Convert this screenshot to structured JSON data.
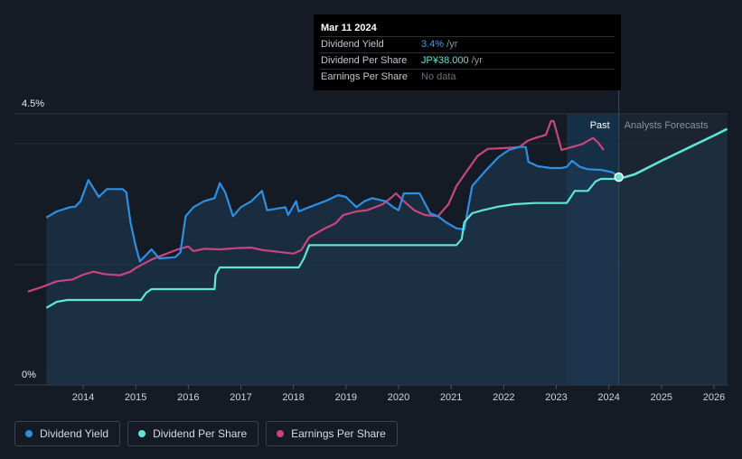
{
  "chart_data": {
    "type": "line",
    "title": "",
    "x_ticks": [
      "2014",
      "2015",
      "2016",
      "2017",
      "2018",
      "2019",
      "2020",
      "2021",
      "2022",
      "2023",
      "2024",
      "2025",
      "2026"
    ],
    "x_range": [
      2013.0,
      2026.25
    ],
    "y_range_pct": [
      0,
      4.5
    ],
    "y_labels": [
      "4.5%",
      "0%"
    ],
    "regions": {
      "past_label": "Past",
      "forecast_label": "Analysts Forecasts",
      "divider_x": 2024.19
    },
    "tooltip": {
      "date": "Mar 11 2024",
      "rows": [
        {
          "name": "Dividend Yield",
          "value": "3.4%",
          "suffix": " /yr",
          "color": "blue"
        },
        {
          "name": "Dividend Per Share",
          "value": "JP¥38.000",
          "suffix": " /yr",
          "color": "teal"
        },
        {
          "name": "Earnings Per Share",
          "value": "No data",
          "suffix": "",
          "color": "grey"
        }
      ]
    },
    "series": [
      {
        "name": "Dividend Yield",
        "unit": "%",
        "color": "#2e8fe0",
        "points": [
          [
            2013.3,
            2.78
          ],
          [
            2013.5,
            2.88
          ],
          [
            2013.75,
            2.95
          ],
          [
            2013.85,
            2.96
          ],
          [
            2013.95,
            3.05
          ],
          [
            2014.1,
            3.4
          ],
          [
            2014.3,
            3.12
          ],
          [
            2014.45,
            3.25
          ],
          [
            2014.75,
            3.25
          ],
          [
            2014.82,
            3.2
          ],
          [
            2014.9,
            2.7
          ],
          [
            2015.0,
            2.3
          ],
          [
            2015.08,
            2.05
          ],
          [
            2015.3,
            2.25
          ],
          [
            2015.45,
            2.1
          ],
          [
            2015.75,
            2.12
          ],
          [
            2015.85,
            2.2
          ],
          [
            2015.95,
            2.8
          ],
          [
            2016.1,
            2.95
          ],
          [
            2016.3,
            3.05
          ],
          [
            2016.5,
            3.1
          ],
          [
            2016.6,
            3.35
          ],
          [
            2016.7,
            3.2
          ],
          [
            2016.85,
            2.8
          ],
          [
            2017.0,
            2.95
          ],
          [
            2017.2,
            3.05
          ],
          [
            2017.4,
            3.22
          ],
          [
            2017.5,
            2.9
          ],
          [
            2017.85,
            2.95
          ],
          [
            2017.9,
            2.82
          ],
          [
            2018.05,
            3.05
          ],
          [
            2018.1,
            2.88
          ],
          [
            2018.3,
            2.95
          ],
          [
            2018.6,
            3.05
          ],
          [
            2018.85,
            3.15
          ],
          [
            2019.0,
            3.12
          ],
          [
            2019.2,
            2.95
          ],
          [
            2019.35,
            3.05
          ],
          [
            2019.5,
            3.1
          ],
          [
            2019.75,
            3.05
          ],
          [
            2019.9,
            2.95
          ],
          [
            2020.0,
            2.9
          ],
          [
            2020.1,
            3.18
          ],
          [
            2020.4,
            3.18
          ],
          [
            2020.6,
            2.85
          ],
          [
            2020.75,
            2.8
          ],
          [
            2020.9,
            2.7
          ],
          [
            2021.1,
            2.6
          ],
          [
            2021.25,
            2.58
          ],
          [
            2021.4,
            3.3
          ],
          [
            2021.65,
            3.55
          ],
          [
            2021.9,
            3.78
          ],
          [
            2022.1,
            3.9
          ],
          [
            2022.3,
            3.95
          ],
          [
            2022.42,
            3.95
          ],
          [
            2022.47,
            3.7
          ],
          [
            2022.65,
            3.63
          ],
          [
            2022.9,
            3.6
          ],
          [
            2023.1,
            3.6
          ],
          [
            2023.2,
            3.62
          ],
          [
            2023.3,
            3.72
          ],
          [
            2023.45,
            3.62
          ],
          [
            2023.6,
            3.58
          ],
          [
            2023.85,
            3.57
          ],
          [
            2024.07,
            3.53
          ],
          [
            2024.19,
            3.45
          ]
        ]
      },
      {
        "name": "Dividend Per Share",
        "unit": "JPY",
        "color": "#5fe6d6",
        "points": [
          [
            2013.3,
            1.28
          ],
          [
            2013.5,
            1.38
          ],
          [
            2013.7,
            1.41
          ],
          [
            2014.0,
            1.41
          ],
          [
            2014.5,
            1.41
          ],
          [
            2015.1,
            1.41
          ],
          [
            2015.2,
            1.53
          ],
          [
            2015.3,
            1.59
          ],
          [
            2016.0,
            1.59
          ],
          [
            2016.5,
            1.59
          ],
          [
            2016.52,
            1.83
          ],
          [
            2016.6,
            1.95
          ],
          [
            2017.0,
            1.95
          ],
          [
            2017.5,
            1.95
          ],
          [
            2018.0,
            1.95
          ],
          [
            2018.1,
            1.95
          ],
          [
            2018.2,
            2.1
          ],
          [
            2018.3,
            2.32
          ],
          [
            2019.0,
            2.32
          ],
          [
            2020.0,
            2.32
          ],
          [
            2020.5,
            2.32
          ],
          [
            2021.1,
            2.32
          ],
          [
            2021.2,
            2.42
          ],
          [
            2021.25,
            2.7
          ],
          [
            2021.4,
            2.85
          ],
          [
            2021.6,
            2.9
          ],
          [
            2021.9,
            2.96
          ],
          [
            2022.2,
            3.0
          ],
          [
            2022.6,
            3.02
          ],
          [
            2023.2,
            3.02
          ],
          [
            2023.3,
            3.15
          ],
          [
            2023.35,
            3.22
          ],
          [
            2023.6,
            3.22
          ],
          [
            2023.75,
            3.38
          ],
          [
            2023.85,
            3.42
          ],
          [
            2024.19,
            3.42
          ]
        ]
      },
      {
        "name": "Dividend Per Share Forecast",
        "unit": "JPY",
        "color": "#5fe6d6",
        "points": [
          [
            2024.19,
            3.42
          ],
          [
            2024.5,
            3.5
          ],
          [
            2025.0,
            3.72
          ],
          [
            2025.5,
            3.93
          ],
          [
            2026.0,
            4.14
          ],
          [
            2026.25,
            4.25
          ]
        ]
      },
      {
        "name": "Earnings Per Share",
        "unit": "JPY",
        "color": "#c9457f",
        "points": [
          [
            2012.95,
            1.55
          ],
          [
            2013.2,
            1.62
          ],
          [
            2013.5,
            1.72
          ],
          [
            2013.8,
            1.75
          ],
          [
            2014.0,
            1.83
          ],
          [
            2014.2,
            1.88
          ],
          [
            2014.4,
            1.84
          ],
          [
            2014.7,
            1.82
          ],
          [
            2014.9,
            1.88
          ],
          [
            2015.0,
            1.94
          ],
          [
            2015.3,
            2.08
          ],
          [
            2015.5,
            2.15
          ],
          [
            2015.8,
            2.25
          ],
          [
            2016.0,
            2.3
          ],
          [
            2016.1,
            2.22
          ],
          [
            2016.3,
            2.26
          ],
          [
            2016.6,
            2.25
          ],
          [
            2016.9,
            2.27
          ],
          [
            2017.2,
            2.28
          ],
          [
            2017.4,
            2.24
          ],
          [
            2017.6,
            2.22
          ],
          [
            2017.8,
            2.2
          ],
          [
            2018.0,
            2.18
          ],
          [
            2018.15,
            2.24
          ],
          [
            2018.3,
            2.45
          ],
          [
            2018.6,
            2.6
          ],
          [
            2018.8,
            2.68
          ],
          [
            2018.95,
            2.82
          ],
          [
            2019.2,
            2.88
          ],
          [
            2019.4,
            2.9
          ],
          [
            2019.7,
            3.0
          ],
          [
            2019.85,
            3.1
          ],
          [
            2019.95,
            3.18
          ],
          [
            2020.1,
            3.05
          ],
          [
            2020.3,
            2.9
          ],
          [
            2020.5,
            2.82
          ],
          [
            2020.75,
            2.8
          ],
          [
            2020.95,
            3.0
          ],
          [
            2021.1,
            3.3
          ],
          [
            2021.3,
            3.55
          ],
          [
            2021.5,
            3.8
          ],
          [
            2021.7,
            3.92
          ],
          [
            2022.0,
            3.93
          ],
          [
            2022.3,
            3.95
          ],
          [
            2022.45,
            4.05
          ],
          [
            2022.6,
            4.1
          ],
          [
            2022.8,
            4.15
          ],
          [
            2022.9,
            4.38
          ],
          [
            2022.95,
            4.38
          ],
          [
            2023.1,
            3.9
          ],
          [
            2023.3,
            3.95
          ],
          [
            2023.5,
            4.0
          ],
          [
            2023.7,
            4.1
          ],
          [
            2023.8,
            4.02
          ],
          [
            2023.9,
            3.9
          ]
        ]
      }
    ]
  },
  "legend": [
    {
      "label": "Dividend Yield",
      "color": "#2e8fe0"
    },
    {
      "label": "Dividend Per Share",
      "color": "#5fe6d6"
    },
    {
      "label": "Earnings Per Share",
      "color": "#c9457f"
    }
  ]
}
